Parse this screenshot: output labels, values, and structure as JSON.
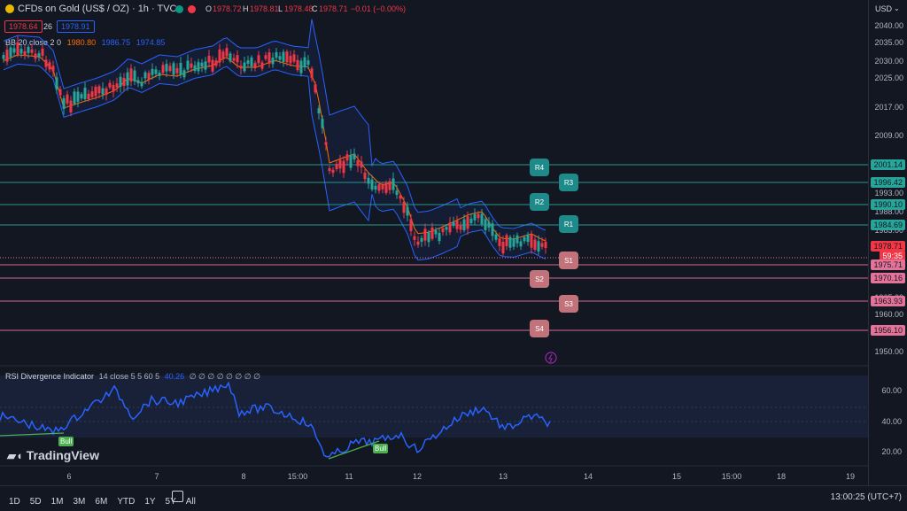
{
  "header": {
    "symbol": "CFDs on Gold (US$ / OZ) · 1h · TVC",
    "open_label": "O",
    "open": "1978.72",
    "high_label": "H",
    "high": "1978.81",
    "low_label": "L",
    "low": "1978.48",
    "close_label": "C",
    "close": "1978.71",
    "change": "−0.01 (−0.00%)",
    "bid": "1978.64",
    "spread": "26",
    "ask": "1978.91",
    "bb_label": "BB 20 close 2 0",
    "bb_basis": "1980.80",
    "bb_upper": "1986.75",
    "bb_lower": "1974.85",
    "currency": "USD"
  },
  "price_axis": {
    "ticks": [
      "2040.00",
      "2035.00",
      "2030.00",
      "2025.00",
      "2017.00",
      "2009.00",
      "1993.00",
      "1988.00",
      "1983.00",
      "1965.00",
      "1960.00",
      "1955.00",
      "1950.00"
    ],
    "levels": [
      {
        "label": "2001.14",
        "color": "#26a69a",
        "kind": "r4"
      },
      {
        "label": "1996.42",
        "color": "#26a69a",
        "kind": "r3"
      },
      {
        "label": "1990.10",
        "color": "#26a69a",
        "kind": "r2"
      },
      {
        "label": "1984.69",
        "color": "#26a69a",
        "kind": "r1"
      },
      {
        "label": "1978.71",
        "color": "#f23645",
        "kind": "last"
      },
      {
        "label": "59:35",
        "color": "#f23645",
        "kind": "countdown"
      },
      {
        "label": "1975.71",
        "color": "#e57399",
        "kind": "s1"
      },
      {
        "label": "1970.16",
        "color": "#e57399",
        "kind": "s2"
      },
      {
        "label": "1963.93",
        "color": "#e57399",
        "kind": "s3"
      },
      {
        "label": "1956.10",
        "color": "#e57399",
        "kind": "s4"
      }
    ]
  },
  "pivots": {
    "R4": "R4",
    "R3": "R3",
    "R2": "R2",
    "R1": "R1",
    "S1": "S1",
    "S2": "S2",
    "S3": "S3",
    "S4": "S4"
  },
  "rsi": {
    "title": "RSI Divergence Indicator",
    "params": "14 close 5 5 60 5",
    "value": "40.26",
    "zeros": "∅ ∅ ∅ ∅ ∅ ∅ ∅ ∅",
    "ticks": [
      "60.00",
      "40.00",
      "20.00"
    ],
    "bull_label": "Bull"
  },
  "x_axis": {
    "ticks": [
      "6",
      "7",
      "8",
      "15:00",
      "11",
      "12",
      "13",
      "14",
      "15",
      "15:00",
      "18",
      "19"
    ]
  },
  "bottom": {
    "ranges": [
      "1D",
      "5D",
      "1M",
      "3M",
      "6M",
      "YTD",
      "1Y",
      "5Y",
      "All"
    ],
    "time": "13:00:25 (UTC+7)"
  },
  "logo": "TradingView",
  "chart_data": {
    "type": "line",
    "title": "CFDs on Gold (US$ / OZ) · 1h · TVC",
    "xlabel": "",
    "ylabel": "",
    "x": [
      "6",
      "7",
      "8",
      "15:00",
      "11",
      "12",
      "13"
    ],
    "series": [
      {
        "values": [
          2033,
          2022,
          2031,
          2030,
          2028,
          1980,
          1975
        ]
      }
    ],
    "ylim": [
      1945,
      2045
    ],
    "grid": true,
    "legend": "none",
    "colors": {
      "up": "#26a69a",
      "down": "#f23645",
      "bb": "#2962ff",
      "basis": "#ff6d00",
      "rsi": "#2962ff"
    }
  }
}
